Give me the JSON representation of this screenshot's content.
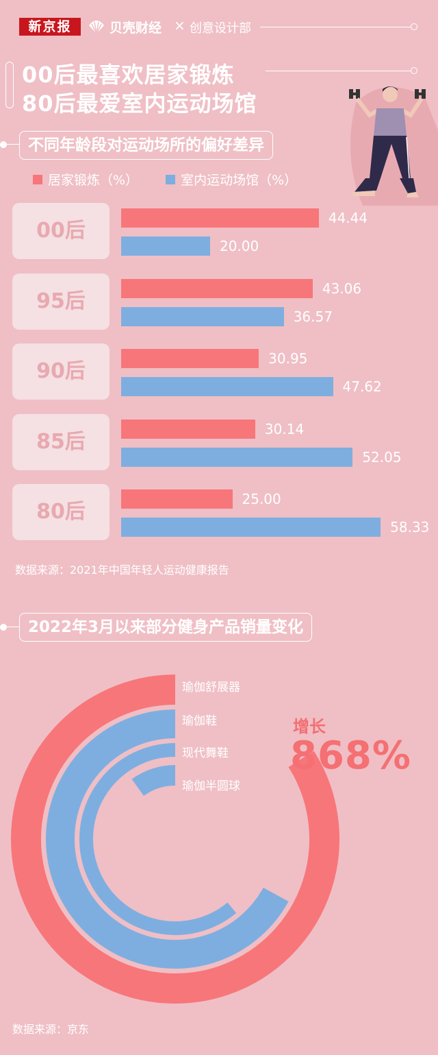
{
  "header": {
    "brand1": "新京报",
    "brand2": "贝壳财经",
    "separator": "×",
    "dept": "创意设计部"
  },
  "title": {
    "line1": "00后最喜欢居家锻炼",
    "line2": "80后最爱室内运动场馆"
  },
  "section1": {
    "heading": "不同年龄段对运动场所的偏好差异",
    "source": "数据来源：2021年中国年轻人运动健康报告"
  },
  "section2": {
    "heading": "2022年3月以来部分健身产品销量变化",
    "growth_label": "增长",
    "growth_value": "868%",
    "source": "数据来源：京东"
  },
  "colors": {
    "background": "#efbfc5",
    "red": "#f7767a",
    "blue": "#7eaee0",
    "label_box": "#f5e0e3",
    "label_text": "#e8a9b0"
  },
  "chart_data": [
    {
      "type": "bar",
      "orientation": "horizontal",
      "categories": [
        "00后",
        "95后",
        "90后",
        "85后",
        "80后"
      ],
      "series": [
        {
          "name": "居家锻炼（%）",
          "color": "#f7767a",
          "values": [
            44.44,
            43.06,
            30.95,
            30.14,
            25.0
          ],
          "labels": [
            "44.44",
            "43.06",
            "30.95",
            "30.14",
            "25.00"
          ]
        },
        {
          "name": "室内运动场馆（%）",
          "color": "#7eaee0",
          "values": [
            20.0,
            36.57,
            47.62,
            52.05,
            58.33
          ],
          "labels": [
            "20.00",
            "36.57",
            "47.62",
            "52.05",
            "58.33"
          ]
        }
      ],
      "legend": "top-left",
      "grid": false
    },
    {
      "type": "radial-bar",
      "categories": [
        "瑜伽舒展器",
        "瑜伽鞋",
        "现代舞鞋",
        "瑜伽半圆球"
      ],
      "colors": [
        "#f7767a",
        "#7eaee0",
        "#7eaee0",
        "#7eaee0"
      ],
      "values": [
        0.84,
        0.67,
        0.61,
        0.1
      ]
    }
  ]
}
